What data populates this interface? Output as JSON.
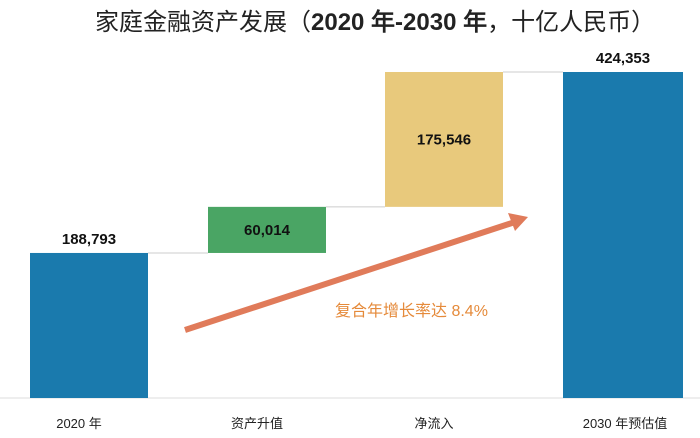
{
  "chart_data": {
    "type": "waterfall",
    "title_prefix": "家庭金融资产发展（",
    "title_bold": "2020 年-2030 年",
    "title_suffix": "，十亿人民币）",
    "categories": [
      "2020 年",
      "资产升值",
      "净流入",
      "2030 年预估值"
    ],
    "values": [
      188793,
      60014,
      175546,
      424353
    ],
    "labels": [
      "188,793",
      "60,014",
      "175,546",
      "424,353"
    ],
    "kinds": [
      "total",
      "increase",
      "increase",
      "total"
    ],
    "colors": [
      "#1a7aad",
      "#4aa564",
      "#e8c97c",
      "#1a7aad"
    ],
    "annotation": {
      "text": "复合年增长率达 8.4%",
      "color": "#e58a3a",
      "arrow_color": "#e07b5a"
    },
    "ylim": [
      0,
      424353
    ],
    "grid": false,
    "legend": "none"
  }
}
